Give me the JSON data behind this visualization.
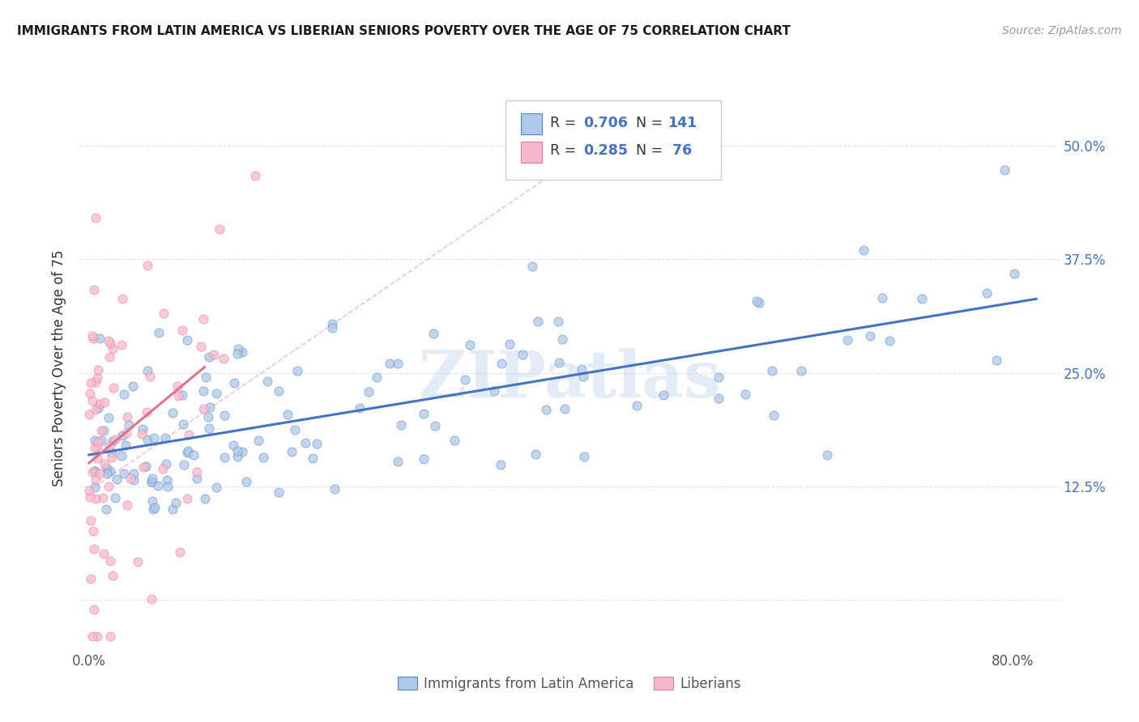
{
  "title": "IMMIGRANTS FROM LATIN AMERICA VS LIBERIAN SENIORS POVERTY OVER THE AGE OF 75 CORRELATION CHART",
  "source": "Source: ZipAtlas.com",
  "ylabel": "Seniors Poverty Over the Age of 75",
  "xlim": [
    -0.008,
    0.84
  ],
  "ylim": [
    -0.055,
    0.565
  ],
  "blue_R": 0.706,
  "blue_N": 141,
  "pink_R": 0.285,
  "pink_N": 76,
  "blue_scatter_color": "#adc8e8",
  "blue_edge_color": "#5585c8",
  "blue_line_color": "#4472c4",
  "pink_scatter_color": "#f8b8cc",
  "pink_edge_color": "#e87898",
  "pink_line_color": "#e07090",
  "dash_line_color": "#e8c0c8",
  "watermark": "ZIPatlas",
  "watermark_color": "#d0dff0",
  "background_color": "#ffffff",
  "grid_color": "#e0e0e0",
  "title_color": "#1a1a1a",
  "source_color": "#999999",
  "right_tick_color": "#4472c4",
  "ylabel_color": "#333333"
}
